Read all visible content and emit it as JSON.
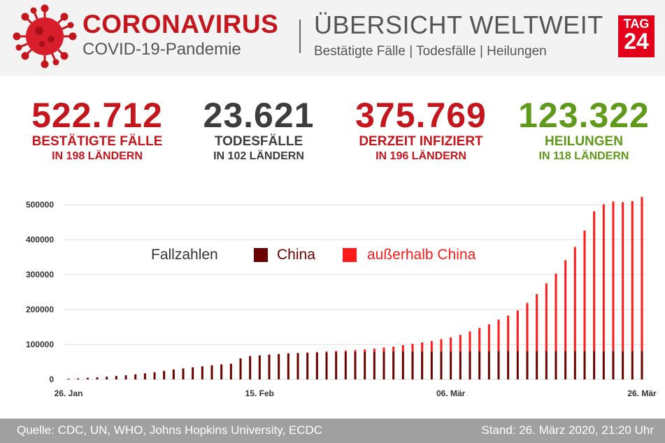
{
  "header": {
    "title": "CORONAVIRUS",
    "subtitle": "COVID-19-Pandemie",
    "overview_title": "ÜBERSICHT WELTWEIT",
    "overview_subtitle": "Bestätigte Fälle | Todesfälle | Heilungen",
    "logo_line1": "TAG",
    "logo_line2": "24",
    "accent_color": "#c4161c"
  },
  "stats": [
    {
      "value": "522.712",
      "label": "BESTÄTIGTE FÄLLE",
      "sub": "IN 198 LÄNDERN",
      "color": "#c4161c"
    },
    {
      "value": "23.621",
      "label": "TODESFÄLLE",
      "sub": "IN 102 LÄNDERN",
      "color": "#3d3d3d"
    },
    {
      "value": "375.769",
      "label": "DERZEIT INFIZIERT",
      "sub": "IN 196 LÄNDERN",
      "color": "#c4161c"
    },
    {
      "value": "123.322",
      "label": "HEILUNGEN",
      "sub": "IN 118 LÄNDERN",
      "color": "#5f9a1b"
    }
  ],
  "chart_data": {
    "type": "bar",
    "stacked": true,
    "legend_title": "Fallzahlen",
    "legend_position": "top-center",
    "grid": true,
    "ylim": [
      0,
      520000
    ],
    "yticks": [
      0,
      100000,
      200000,
      300000,
      400000,
      500000
    ],
    "xtick_labels": [
      {
        "index": 0,
        "label": "26. Jan"
      },
      {
        "index": 20,
        "label": "15. Feb"
      },
      {
        "index": 40,
        "label": "06. Mär"
      },
      {
        "index": 60,
        "label": "26. Mär"
      }
    ],
    "series": [
      {
        "name": "China",
        "color": "#6b0000",
        "values": [
          2000,
          2800,
          4500,
          6000,
          7700,
          9700,
          11800,
          14500,
          17300,
          20400,
          24400,
          28000,
          31200,
          34500,
          37200,
          40200,
          42700,
          44700,
          59800,
          66500,
          68500,
          70500,
          72400,
          74200,
          74700,
          75500,
          76300,
          76900,
          77700,
          78100,
          78500,
          78800,
          79300,
          79800,
          80000,
          80100,
          80300,
          80400,
          80500,
          80600,
          80700,
          80700,
          80800,
          80800,
          80800,
          80900,
          80900,
          80900,
          80900,
          81000,
          81000,
          81000,
          81000,
          81100,
          81100,
          81200,
          81200,
          81300,
          81400,
          81500,
          81600
        ]
      },
      {
        "name": "außerhalb China",
        "color": "#ff1a1a",
        "values": [
          50,
          60,
          70,
          100,
          130,
          150,
          200,
          250,
          300,
          350,
          400,
          450,
          480,
          500,
          520,
          550,
          580,
          600,
          620,
          640,
          700,
          800,
          900,
          1100,
          1400,
          1800,
          2300,
          2900,
          3600,
          4500,
          5600,
          7000,
          9000,
          11500,
          14000,
          17800,
          21500,
          25500,
          29700,
          34600,
          39600,
          46900,
          56500,
          66400,
          77000,
          90100,
          101800,
          116600,
          138000,
          163000,
          194000,
          222000,
          260000,
          298000,
          345000,
          400000,
          420000,
          428000,
          426000,
          429000,
          441000
        ]
      }
    ]
  },
  "footer": {
    "source": "Quelle: CDC, UN, WHO, Johns Hopkins University, ECDC",
    "date": "Stand: 26. März 2020, 21:20 Uhr"
  }
}
